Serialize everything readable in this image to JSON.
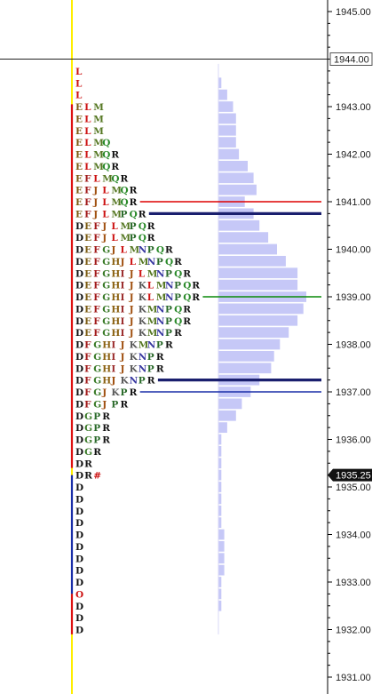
{
  "chart_data": {
    "type": "market-profile",
    "price_axis": {
      "min": 1931.0,
      "max": 1945.0,
      "tick_step": 1.0,
      "tick_labels": [
        "1945.00",
        "1944.00",
        "1943.00",
        "1942.00",
        "1941.00",
        "1940.00",
        "1939.00",
        "1938.00",
        "1937.00",
        "1936.00",
        "1935.00",
        "1934.00",
        "1933.00",
        "1932.00",
        "1931.00"
      ]
    },
    "current_price": {
      "value": 1935.25,
      "label": "1935.25"
    },
    "crosshair_price": {
      "value": 1944.0,
      "label": "1944.00"
    },
    "row_step": 0.25,
    "rows": [
      {
        "price": 1943.75,
        "letters": "L",
        "volume": 0
      },
      {
        "price": 1943.5,
        "letters": "L",
        "volume": 1
      },
      {
        "price": 1943.25,
        "letters": "L",
        "volume": 3
      },
      {
        "price": 1943.0,
        "letters": "ELM",
        "volume": 5
      },
      {
        "price": 1942.75,
        "letters": "ELM",
        "volume": 6
      },
      {
        "price": 1942.5,
        "letters": "ELM",
        "volume": 6
      },
      {
        "price": 1942.25,
        "letters": "ELMQ",
        "volume": 6
      },
      {
        "price": 1942.0,
        "letters": "ELMQR",
        "volume": 7
      },
      {
        "price": 1941.75,
        "letters": "ELMQR",
        "volume": 10
      },
      {
        "price": 1941.5,
        "letters": "EFLMQR",
        "volume": 12
      },
      {
        "price": 1941.25,
        "letters": "EFJLMQR",
        "volume": 13
      },
      {
        "price": 1941.0,
        "letters": "EFJLMQR",
        "volume": 9
      },
      {
        "price": 1940.75,
        "letters": "EFJLMPQR",
        "volume": 12
      },
      {
        "price": 1940.5,
        "letters": "DEFJLMPQR",
        "volume": 14
      },
      {
        "price": 1940.25,
        "letters": "DEFJLMPQR",
        "volume": 17
      },
      {
        "price": 1940.0,
        "letters": "DEFGJLMNPQR",
        "volume": 20
      },
      {
        "price": 1939.75,
        "letters": "DEFGHJLMNPQR",
        "volume": 23
      },
      {
        "price": 1939.5,
        "letters": "DEFGHIJLMNPQR",
        "volume": 27
      },
      {
        "price": 1939.25,
        "letters": "DEFGHIJKLMNPQR",
        "volume": 27
      },
      {
        "price": 1939.0,
        "letters": "DEFGHIJKLMNPQR",
        "volume": 30
      },
      {
        "price": 1938.75,
        "letters": "DEFGHIJKMNPQR",
        "volume": 29
      },
      {
        "price": 1938.5,
        "letters": "DEFGHIJKMNPQR",
        "volume": 27
      },
      {
        "price": 1938.25,
        "letters": "DEFGHIJKMNPR",
        "volume": 24
      },
      {
        "price": 1938.0,
        "letters": "DFGHIJKMNPR",
        "volume": 21
      },
      {
        "price": 1937.75,
        "letters": "DFGHIJKNPR",
        "volume": 19
      },
      {
        "price": 1937.5,
        "letters": "DFGHIJKNPR",
        "volume": 18
      },
      {
        "price": 1937.25,
        "letters": "DFGHJKNPR",
        "volume": 14
      },
      {
        "price": 1937.0,
        "letters": "DFGJKPR",
        "volume": 11
      },
      {
        "price": 1936.75,
        "letters": "DFGJPR",
        "volume": 8
      },
      {
        "price": 1936.5,
        "letters": "DGPR",
        "volume": 6
      },
      {
        "price": 1936.25,
        "letters": "DGPR",
        "volume": 3
      },
      {
        "price": 1936.0,
        "letters": "DGPR",
        "volume": 1
      },
      {
        "price": 1935.75,
        "letters": "DGR",
        "volume": 1
      },
      {
        "price": 1935.5,
        "letters": "DR",
        "volume": 1
      },
      {
        "price": 1935.25,
        "letters": "DR#",
        "volume": 1
      },
      {
        "price": 1935.0,
        "letters": "D",
        "volume": 1
      },
      {
        "price": 1934.75,
        "letters": "D",
        "volume": 1
      },
      {
        "price": 1934.5,
        "letters": "D",
        "volume": 1
      },
      {
        "price": 1934.25,
        "letters": "D",
        "volume": 1
      },
      {
        "price": 1934.0,
        "letters": "D",
        "volume": 2
      },
      {
        "price": 1933.75,
        "letters": "D",
        "volume": 2
      },
      {
        "price": 1933.5,
        "letters": "D",
        "volume": 2
      },
      {
        "price": 1933.25,
        "letters": "D",
        "volume": 2
      },
      {
        "price": 1933.0,
        "letters": "D",
        "volume": 1
      },
      {
        "price": 1932.75,
        "letters": "O",
        "volume": 1
      },
      {
        "price": 1932.5,
        "letters": "D",
        "volume": 1
      },
      {
        "price": 1932.25,
        "letters": "D",
        "volume": 0
      },
      {
        "price": 1932.0,
        "letters": "D",
        "volume": 0
      }
    ],
    "reference_lines": [
      {
        "price": 1941.0,
        "color": "#dd0000",
        "kind": "value-area-high"
      },
      {
        "price": 1940.75,
        "color": "#1a1f6e",
        "kind": "initial-balance-high"
      },
      {
        "price": 1939.0,
        "color": "#0a8a0a",
        "kind": "point-of-control"
      },
      {
        "price": 1937.25,
        "color": "#1a1f6e",
        "kind": "initial-balance-low"
      },
      {
        "price": 1937.0,
        "color": "#1a2ea8",
        "kind": "value-area-low"
      }
    ],
    "letter_colors": {
      "D": "#111111",
      "E": "#7a5a10",
      "F": "#a01818",
      "G": "#3a7a28",
      "H": "#8a6010",
      "I": "#9a2a2a",
      "J": "#a05010",
      "K": "#5a5a5a",
      "L": "#cc1111",
      "M": "#557722",
      "N": "#3838a0",
      "O": "#cc1111",
      "P": "#2a6a2a",
      "Q": "#2a8a2a",
      "R": "#111111",
      "#": "#cc1111"
    },
    "colors": {
      "volume_bar": "#c6c8f7",
      "session_marker": "#ffee00",
      "price_line": "#222222",
      "current_price_bg": "#111111",
      "range_upper": "#dd1111",
      "range_lower": "#1a2ea8"
    }
  }
}
